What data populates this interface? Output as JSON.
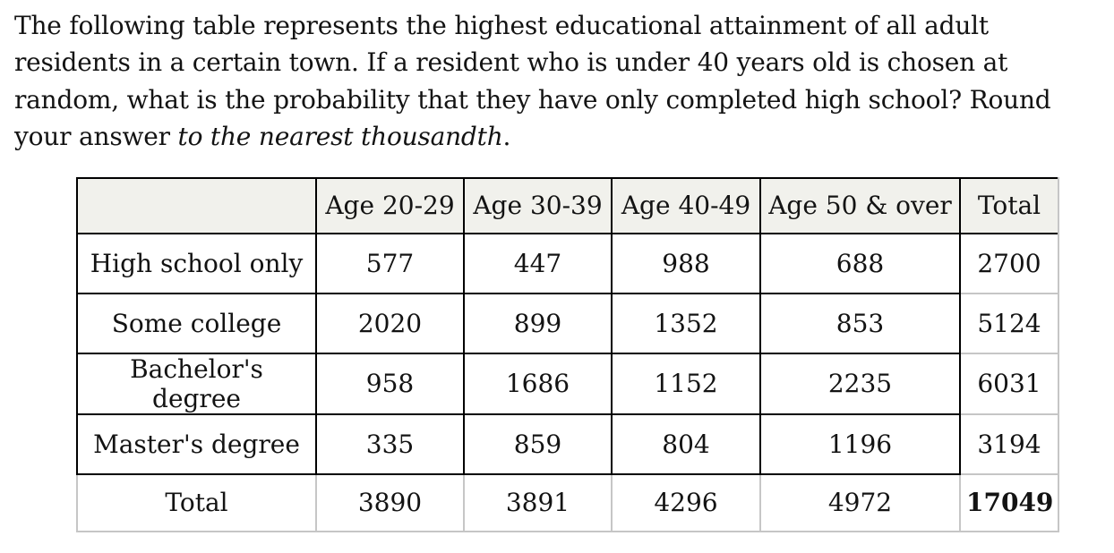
{
  "question": {
    "text_before_italic": "The following table represents the highest educational attainment of all adult residents in a certain town. If a resident who is under 40 years old is chosen at random, what is the probability that they have only completed high school? Round your answer ",
    "italic_text": "to the nearest thousandth",
    "text_after_italic": "."
  },
  "table": {
    "corner_label": "",
    "column_headers": [
      "Age 20-29",
      "Age 30-39",
      "Age 40-49",
      "Age 50 & over",
      "Total"
    ],
    "rows": [
      {
        "label": "High school only",
        "values": [
          "577",
          "447",
          "988",
          "688",
          "2700"
        ]
      },
      {
        "label": "Some college",
        "values": [
          "2020",
          "899",
          "1352",
          "853",
          "5124"
        ]
      },
      {
        "label": "Bachelor's degree",
        "values": [
          "958",
          "1686",
          "1152",
          "2235",
          "6031"
        ]
      },
      {
        "label": "Master's degree",
        "values": [
          "335",
          "859",
          "804",
          "1196",
          "3194"
        ]
      },
      {
        "label": "Total",
        "values": [
          "3890",
          "3891",
          "4296",
          "4972",
          "17049"
        ]
      }
    ]
  },
  "colors": {
    "background": "#ffffff",
    "header_bg": "#f1f1ec",
    "grid_border": "#000000",
    "total_border": "#c6c6c6",
    "text": "#131313"
  }
}
